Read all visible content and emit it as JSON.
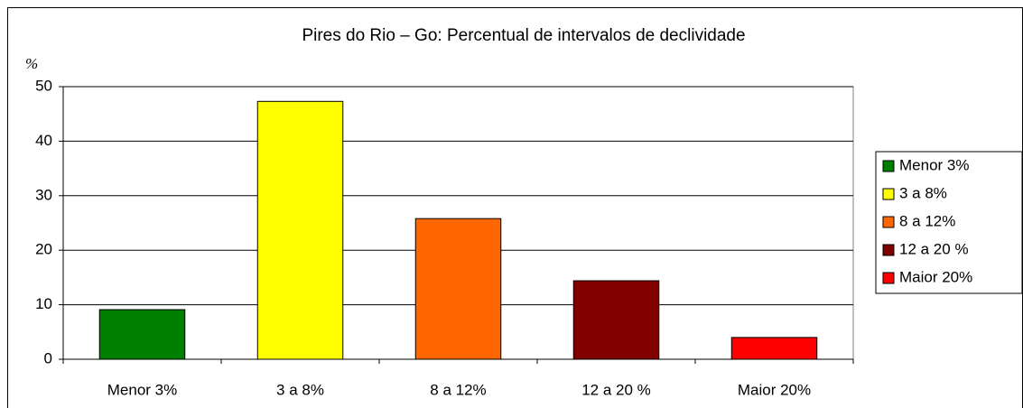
{
  "chart_data": {
    "type": "bar",
    "title": "Pires do Rio – Go:  Percentual de intervalos de declividade",
    "y_label": "%",
    "categories": [
      "Menor 3%",
      "3 a 8%",
      "8 a 12%",
      "12 a 20 %",
      "Maior 20%"
    ],
    "values": [
      9.1,
      47.3,
      25.8,
      14.4,
      4.0
    ],
    "colors": [
      "#008000",
      "#ffff00",
      "#ff6600",
      "#800000",
      "#ff0000"
    ],
    "ylim": [
      0,
      50
    ],
    "yticks": [
      0,
      10,
      20,
      30,
      40,
      50
    ],
    "grid": true,
    "legend": "right"
  }
}
